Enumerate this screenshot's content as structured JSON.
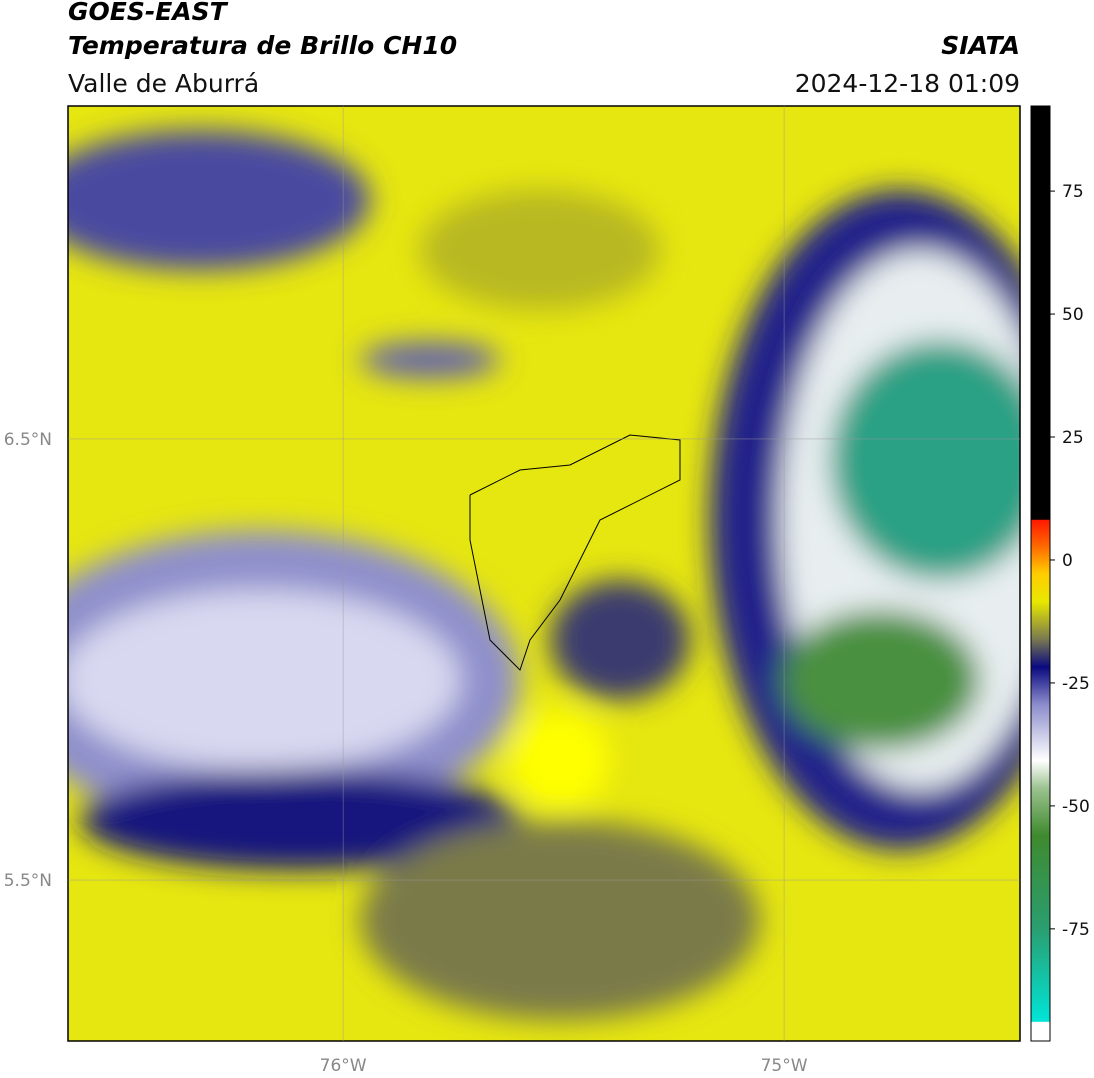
{
  "header": {
    "title": "GOES-EAST",
    "subtitle": "Temperatura de Brillo CH10",
    "region": "Valle de Aburrá",
    "source": "SIATA",
    "timestamp": "2024-12-18 01:09"
  },
  "map": {
    "lon_range": [
      -76.624,
      -74.465
    ],
    "lat_range": [
      5.135,
      7.255
    ],
    "lon_ticks": [
      {
        "value": -76,
        "label": "76°W"
      },
      {
        "value": -75,
        "label": "75°W"
      }
    ],
    "lat_ticks": [
      {
        "value": 6.5,
        "label": "6.5°N"
      },
      {
        "value": 5.5,
        "label": "5.5°N"
      }
    ]
  },
  "colorbar": {
    "range": [
      -97.8,
      92.3
    ],
    "ticks": [
      75,
      50,
      25,
      0,
      -25,
      -50,
      -75
    ]
  }
}
